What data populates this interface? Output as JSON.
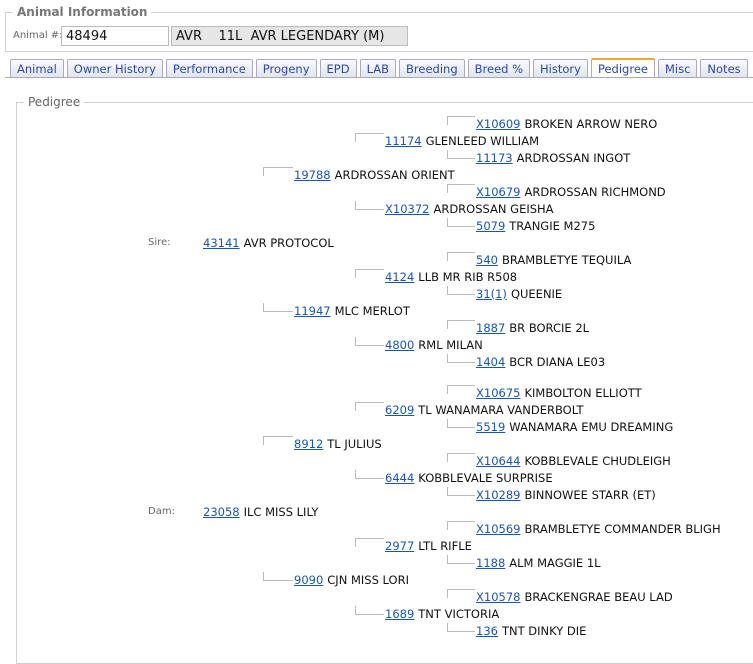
{
  "animal_info": {
    "title": "Animal Information",
    "animal_label": "Animal #:",
    "animal_number": "48494",
    "animal_name": "AVR    11L  AVR LEGENDARY (M)"
  },
  "tabs": [
    {
      "label": "Animal"
    },
    {
      "label": "Owner History"
    },
    {
      "label": "Performance"
    },
    {
      "label": "Progeny"
    },
    {
      "label": "EPD"
    },
    {
      "label": "LAB"
    },
    {
      "label": "Breeding"
    },
    {
      "label": "Breed %"
    },
    {
      "label": "History"
    },
    {
      "label": "Pedigree",
      "active": true
    },
    {
      "label": "Misc"
    },
    {
      "label": "Notes"
    }
  ],
  "pedigree": {
    "title": "Pedigree",
    "sire_label": "Sire:",
    "dam_label": "Dam:",
    "sire_side": [
      {
        "gen": 4,
        "pos": "upper",
        "id": "X10609",
        "name": "BROKEN ARROW NERO"
      },
      {
        "gen": 3,
        "pos": "upper",
        "id": "11174",
        "name": "GLENLEED WILLIAM"
      },
      {
        "gen": 4,
        "pos": "lower",
        "id": "11173",
        "name": "ARDROSSAN INGOT"
      },
      {
        "gen": 2,
        "pos": "upper",
        "id": "19788",
        "name": "ARDROSSAN ORIENT"
      },
      {
        "gen": 4,
        "pos": "upper",
        "id": "X10679",
        "name": "ARDROSSAN RICHMOND"
      },
      {
        "gen": 3,
        "pos": "lower",
        "id": "X10372",
        "name": "ARDROSSAN GEISHA"
      },
      {
        "gen": 4,
        "pos": "lower",
        "id": "5079",
        "name": "TRANGIE M275"
      },
      {
        "gen": 1,
        "pos": "sire",
        "id": "43141",
        "name": "AVR PROTOCOL"
      },
      {
        "gen": 4,
        "pos": "upper",
        "id": "540",
        "name": "BRAMBLETYE TEQUILA"
      },
      {
        "gen": 3,
        "pos": "upper",
        "id": "4124",
        "name": "LLB MR RIB R508"
      },
      {
        "gen": 4,
        "pos": "lower",
        "id": "31(1)",
        "name": "QUEENIE"
      },
      {
        "gen": 2,
        "pos": "lower",
        "id": "11947",
        "name": "MLC MERLOT"
      },
      {
        "gen": 4,
        "pos": "upper",
        "id": "1887",
        "name": "BR BORCIE 2L"
      },
      {
        "gen": 3,
        "pos": "lower",
        "id": "4800",
        "name": "RML MILAN"
      },
      {
        "gen": 4,
        "pos": "lower",
        "id": "1404",
        "name": "BCR DIANA LE03"
      }
    ],
    "dam_side": [
      {
        "gen": 4,
        "pos": "upper",
        "id": "X10675",
        "name": "KIMBOLTON ELLIOTT"
      },
      {
        "gen": 3,
        "pos": "upper",
        "id": "6209",
        "name": "TL WANAMARA VANDERBOLT"
      },
      {
        "gen": 4,
        "pos": "lower",
        "id": "5519",
        "name": "WANAMARA EMU DREAMING"
      },
      {
        "gen": 2,
        "pos": "upper",
        "id": "8912",
        "name": "TL JULIUS"
      },
      {
        "gen": 4,
        "pos": "upper",
        "id": "X10644",
        "name": "KOBBLEVALE CHUDLEIGH"
      },
      {
        "gen": 3,
        "pos": "lower",
        "id": "6444",
        "name": "KOBBLEVALE SURPRISE"
      },
      {
        "gen": 4,
        "pos": "lower",
        "id": "X10289",
        "name": "BINNOWEE STARR (ET)"
      },
      {
        "gen": 1,
        "pos": "dam",
        "id": "23058",
        "name": "ILC MISS LILY"
      },
      {
        "gen": 4,
        "pos": "upper",
        "id": "X10569",
        "name": "BRAMBLETYE COMMANDER BLIGH"
      },
      {
        "gen": 3,
        "pos": "upper",
        "id": "2977",
        "name": "LTL RIFLE"
      },
      {
        "gen": 4,
        "pos": "lower",
        "id": "1188",
        "name": "ALM MAGGIE 1L"
      },
      {
        "gen": 2,
        "pos": "lower",
        "id": "9090",
        "name": "CJN MISS LORI"
      },
      {
        "gen": 4,
        "pos": "upper",
        "id": "X10578",
        "name": "BRACKENGRAE BEAU LAD"
      },
      {
        "gen": 3,
        "pos": "lower",
        "id": "1689",
        "name": "TNT VICTORIA"
      },
      {
        "gen": 4,
        "pos": "lower",
        "id": "136",
        "name": "TNT DINKY DIE"
      }
    ]
  }
}
